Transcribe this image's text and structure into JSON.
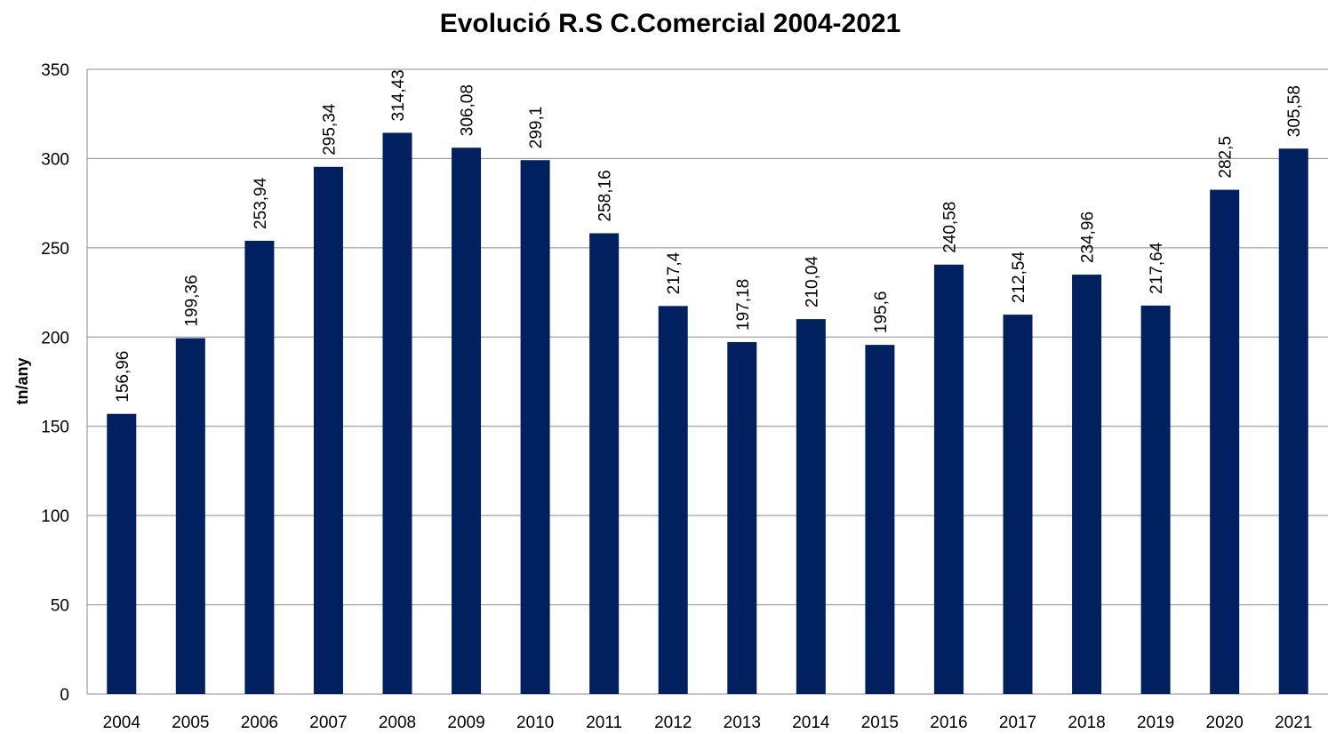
{
  "chart_data": {
    "type": "bar",
    "title": "Evolució R.S C.Comercial 2004-2021",
    "xlabel": "",
    "ylabel": "tn/any",
    "ylim": [
      0,
      350
    ],
    "yticks": [
      "0",
      "50",
      "100",
      "150",
      "200",
      "250",
      "300",
      "350"
    ],
    "grid": true,
    "legend": "none",
    "bar_color": "#002060",
    "categories": [
      "2004",
      "2005",
      "2006",
      "2007",
      "2008",
      "2009",
      "2010",
      "2011",
      "2012",
      "2013",
      "2014",
      "2015",
      "2016",
      "2017",
      "2018",
      "2019",
      "2020",
      "2021"
    ],
    "values": [
      156.96,
      199.36,
      253.94,
      295.34,
      314.43,
      306.08,
      299.1,
      258.16,
      217.4,
      197.18,
      210.04,
      195.6,
      240.58,
      212.54,
      234.96,
      217.64,
      282.5,
      305.58
    ],
    "data_labels": [
      "156,96",
      "199,36",
      "253,94",
      "295,34",
      "314,43",
      "306,08",
      "299,1",
      "258,16",
      "217,4",
      "197,18",
      "210,04",
      "195,6",
      "240,58",
      "212,54",
      "234,96",
      "217,64",
      "282,5",
      "305,58"
    ]
  }
}
